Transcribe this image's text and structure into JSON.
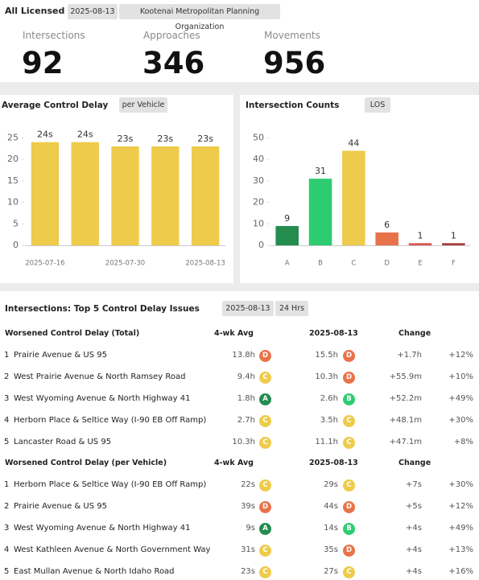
{
  "header": {
    "title": "All Licensed",
    "chips": [
      "2025-08-13",
      "Kootenai Metropolitan Planning Organization"
    ]
  },
  "stats": [
    {
      "label": "Intersections",
      "value": 92
    },
    {
      "label": "Approaches",
      "value": 346
    },
    {
      "label": "Movements",
      "value": 956
    }
  ],
  "chart_data": [
    {
      "type": "bar",
      "title": "Average Control Delay",
      "toggle": "per Vehicle",
      "categories": [
        "2025-07-16",
        null,
        "2025-07-30",
        null,
        "2025-08-13"
      ],
      "values": [
        24,
        24,
        23,
        23,
        23
      ],
      "value_labels": [
        "24s",
        "24s",
        "23s",
        "23s",
        "23s"
      ],
      "color": "#eecb4a",
      "ylim": [
        0,
        27.5
      ],
      "yticks": [
        0,
        5,
        10,
        15,
        20,
        25
      ]
    },
    {
      "type": "bar",
      "title": "Intersection Counts",
      "toggle": "LOS",
      "categories": [
        "A",
        "B",
        "C",
        "D",
        "E",
        "F"
      ],
      "values": [
        9,
        31,
        44,
        6,
        1,
        1
      ],
      "colors": [
        "#238c4e",
        "#2ecc71",
        "#eecb4a",
        "#e8734a",
        "#d9534f",
        "#a93a3a"
      ],
      "ylim": [
        0,
        55
      ],
      "yticks": [
        0,
        10,
        20,
        30,
        40,
        50
      ]
    }
  ],
  "table": {
    "title": "Intersections: Top 5 Control Delay Issues",
    "chips": [
      "2025-08-13",
      "24 Hrs"
    ],
    "groups": [
      {
        "columns": [
          "Worsened Control Delay (Total)",
          "4-wk Avg",
          "2025-08-13",
          "Change"
        ],
        "rows": [
          {
            "rank": 1,
            "name": "Prairie Avenue & US 95",
            "avg": "13.8h",
            "avg_grade": "D",
            "current": "15.5h",
            "current_grade": "D",
            "change": "+1.7h",
            "pct": "+12%"
          },
          {
            "rank": 2,
            "name": "West Prairie Avenue & North Ramsey Road",
            "avg": "9.4h",
            "avg_grade": "C",
            "current": "10.3h",
            "current_grade": "D",
            "change": "+55.9m",
            "pct": "+10%"
          },
          {
            "rank": 3,
            "name": "West Wyoming Avenue & North Highway 41",
            "avg": "1.8h",
            "avg_grade": "A",
            "current": "2.6h",
            "current_grade": "B",
            "change": "+52.2m",
            "pct": "+49%"
          },
          {
            "rank": 4,
            "name": "Herborn Place & Seltice Way (I-90 EB Off Ramp)",
            "avg": "2.7h",
            "avg_grade": "C",
            "current": "3.5h",
            "current_grade": "C",
            "change": "+48.1m",
            "pct": "+30%"
          },
          {
            "rank": 5,
            "name": "Lancaster Road & US 95",
            "avg": "10.3h",
            "avg_grade": "C",
            "current": "11.1h",
            "current_grade": "C",
            "change": "+47.1m",
            "pct": "+8%"
          }
        ]
      },
      {
        "columns": [
          "Worsened Control Delay (per Vehicle)",
          "4-wk Avg",
          "2025-08-13",
          "Change"
        ],
        "rows": [
          {
            "rank": 1,
            "name": "Herborn Place & Seltice Way (I-90 EB Off Ramp)",
            "avg": "22s",
            "avg_grade": "C",
            "current": "29s",
            "current_grade": "C",
            "change": "+7s",
            "pct": "+30%"
          },
          {
            "rank": 2,
            "name": "Prairie Avenue & US 95",
            "avg": "39s",
            "avg_grade": "D",
            "current": "44s",
            "current_grade": "D",
            "change": "+5s",
            "pct": "+12%"
          },
          {
            "rank": 3,
            "name": "West Wyoming Avenue & North Highway 41",
            "avg": "9s",
            "avg_grade": "A",
            "current": "14s",
            "current_grade": "B",
            "change": "+4s",
            "pct": "+49%"
          },
          {
            "rank": 4,
            "name": "West Kathleen Avenue & North Government Way",
            "avg": "31s",
            "avg_grade": "C",
            "current": "35s",
            "current_grade": "D",
            "change": "+4s",
            "pct": "+13%"
          },
          {
            "rank": 5,
            "name": "East Mullan Avenue & North Idaho Road",
            "avg": "23s",
            "avg_grade": "C",
            "current": "27s",
            "current_grade": "C",
            "change": "+4s",
            "pct": "+16%"
          }
        ]
      }
    ]
  }
}
